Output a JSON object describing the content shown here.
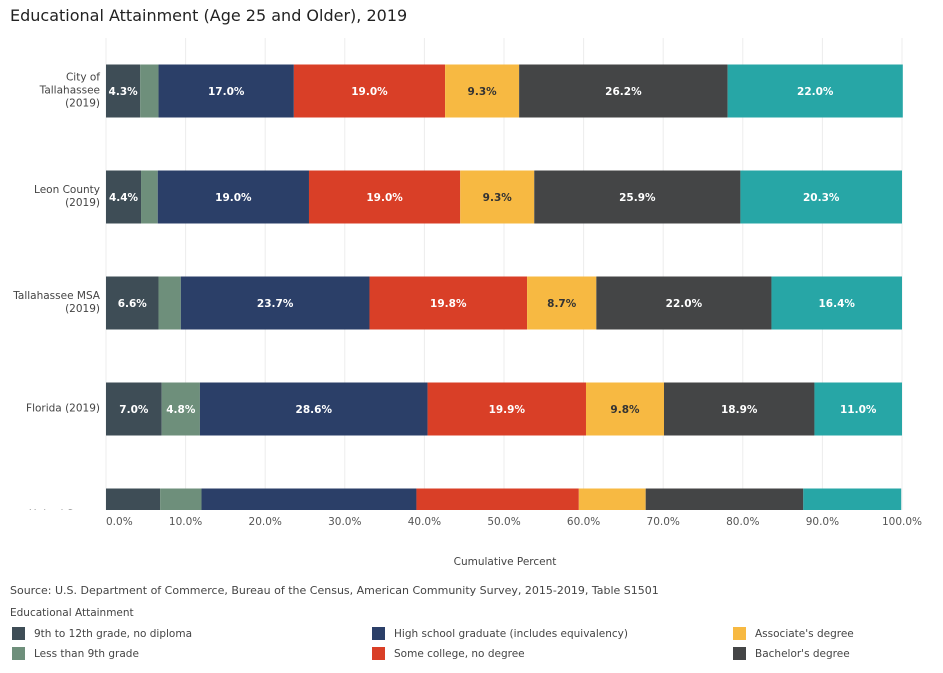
{
  "chart_data": {
    "type": "stacked-bar-horizontal",
    "title": "Educational Attainment (Age 25 and Older), 2019",
    "categories": [
      "City of Tallahassee (2019)",
      "Leon County (2019)",
      "Tallahassee MSA (2019)",
      "Florida (2019)",
      "United States"
    ],
    "series": [
      {
        "name": "9th to 12th grade, no diploma",
        "color": "#3e4d56",
        "values": [
          4.3,
          4.4,
          6.6,
          7.0,
          6.8
        ],
        "value_labels": [
          "4.3%",
          "4.4%",
          "6.6%",
          "7.0%",
          null
        ]
      },
      {
        "name": "Less than 9th grade",
        "color": "#6e8f7b",
        "values": [
          2.3,
          2.1,
          2.8,
          4.8,
          5.2
        ],
        "value_labels": [
          null,
          null,
          null,
          "4.8%",
          null
        ]
      },
      {
        "name": "High school graduate (includes equivalency)",
        "color": "#2b3f68",
        "values": [
          17.0,
          19.0,
          23.7,
          28.6,
          27.0
        ],
        "value_labels": [
          "17.0%",
          "19.0%",
          "23.7%",
          "28.6%",
          null
        ]
      },
      {
        "name": "Some college, no degree",
        "color": "#d93f27",
        "values": [
          19.0,
          19.0,
          19.8,
          19.9,
          20.4
        ],
        "value_labels": [
          "19.0%",
          "19.0%",
          "19.8%",
          "19.9%",
          null
        ]
      },
      {
        "name": "Associate's degree",
        "color": "#f7b942",
        "values": [
          9.3,
          9.3,
          8.7,
          9.8,
          8.4
        ],
        "value_labels": [
          "9.3%",
          "9.3%",
          "8.7%",
          "9.8%",
          null
        ]
      },
      {
        "name": "Bachelor's degree",
        "color": "#444546",
        "values": [
          26.2,
          25.9,
          22.0,
          18.9,
          19.8
        ],
        "value_labels": [
          "26.2%",
          "25.9%",
          "22.0%",
          "18.9%",
          null
        ]
      },
      {
        "color": "#27a6a6",
        "values": [
          22.0,
          20.3,
          16.4,
          11.0,
          12.3
        ],
        "value_labels": [
          "22.0%",
          "20.3%",
          "16.4%",
          "11.0%",
          null
        ]
      }
    ],
    "xlim": [
      0,
      100
    ],
    "xticks": [
      {
        "value": 0,
        "label": "0.0%"
      },
      {
        "value": 10,
        "label": "10.0%"
      },
      {
        "value": 20,
        "label": "20.0%"
      },
      {
        "value": 30,
        "label": "30.0%"
      },
      {
        "value": 40,
        "label": "40.0%"
      },
      {
        "value": 50,
        "label": "50.0%"
      },
      {
        "value": 60,
        "label": "60.0%"
      },
      {
        "value": 70,
        "label": "70.0%"
      },
      {
        "value": 80,
        "label": "80.0%"
      },
      {
        "value": 90,
        "label": "90.0%"
      },
      {
        "value": 100,
        "label": "100.0%"
      }
    ],
    "xlabel": "Cumulative Percent",
    "source": "Source: U.S. Department of Commerce, Bureau of the Census, American Community Survey, 2015-2019, Table S1501",
    "legend_title": "Educational Attainment",
    "grid": true
  }
}
